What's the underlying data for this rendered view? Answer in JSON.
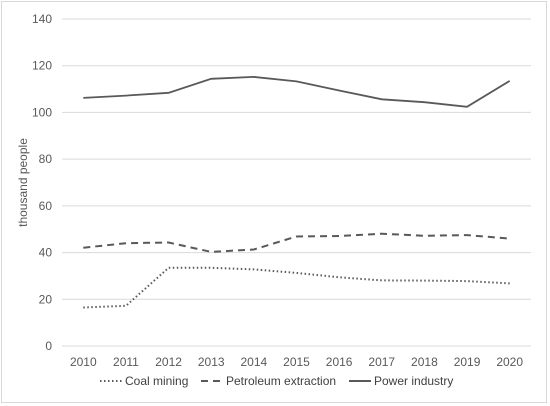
{
  "chart_data": {
    "type": "line",
    "title": "",
    "xlabel": "",
    "ylabel": "thousand people",
    "ylim": [
      0,
      140
    ],
    "yticks": [
      0,
      20,
      40,
      60,
      80,
      100,
      120,
      140
    ],
    "categories": [
      "2010",
      "2011",
      "2012",
      "2013",
      "2014",
      "2015",
      "2016",
      "2017",
      "2018",
      "2019",
      "2020"
    ],
    "grid": true,
    "legend_position": "bottom",
    "series": [
      {
        "name": "Coal mining",
        "style": "dotted",
        "color": "#595959",
        "values": [
          16.5,
          17.2,
          33.5,
          33.5,
          32.8,
          31.3,
          29.4,
          28.1,
          28.0,
          27.8,
          26.8
        ]
      },
      {
        "name": "Petroleum extraction",
        "style": "dashed",
        "color": "#595959",
        "values": [
          42.1,
          44.0,
          44.3,
          40.3,
          41.3,
          46.9,
          47.1,
          48.1,
          47.2,
          47.5,
          46.0
        ]
      },
      {
        "name": "Power industry",
        "style": "solid",
        "color": "#595959",
        "values": [
          106.2,
          107.2,
          108.4,
          114.4,
          115.2,
          113.3,
          109.4,
          105.6,
          104.4,
          102.4,
          113.5
        ]
      }
    ]
  }
}
